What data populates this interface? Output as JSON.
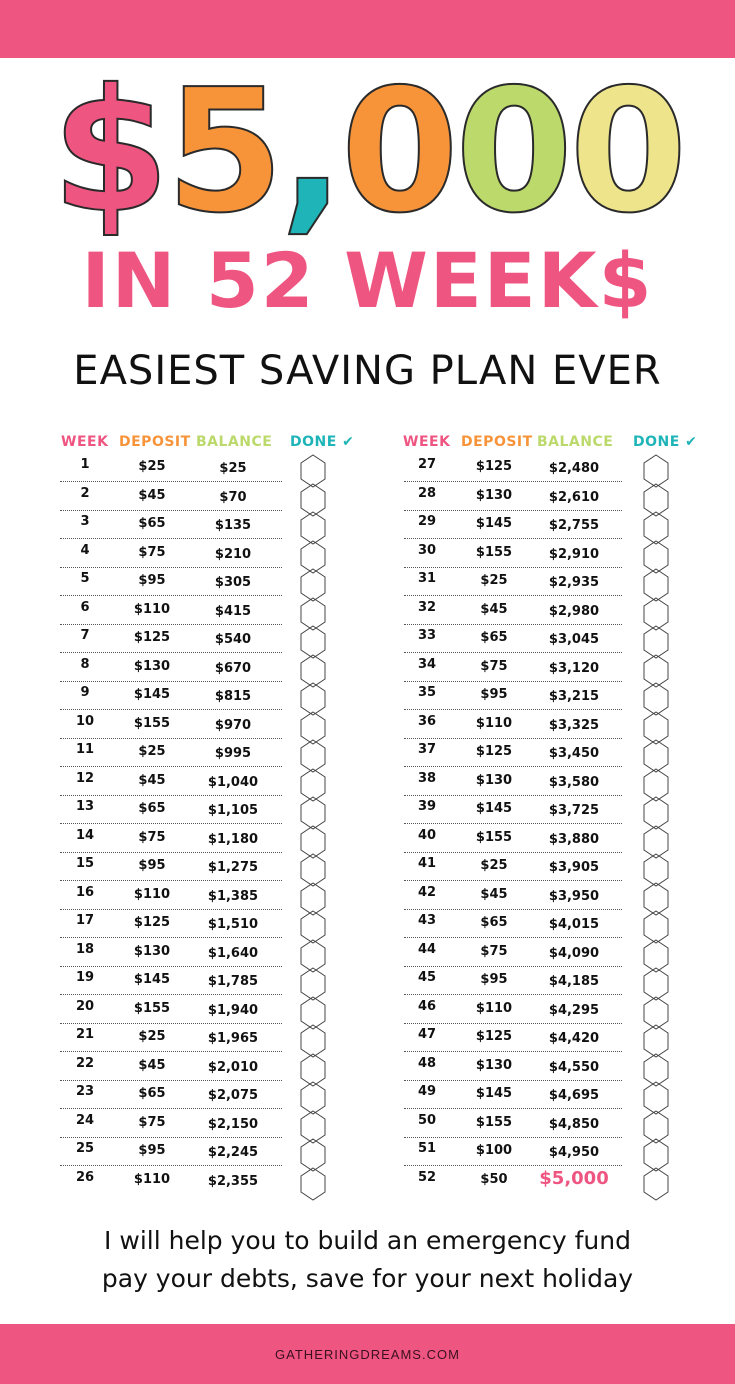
{
  "colors": {
    "pink": "#ef5581",
    "orange": "#f7943a",
    "teal": "#1fb5b8",
    "green": "#bcd96c",
    "yellow": "#eee48c"
  },
  "title": {
    "chars": [
      "$",
      "5",
      ",",
      "0",
      "0",
      "0"
    ],
    "colors": [
      "#ef5581",
      "#f7943a",
      "#1fb5b8",
      "#f7943a",
      "#bcd96c",
      "#eee48c"
    ]
  },
  "subtitle": "IN 52 WEEK$",
  "tagline": "EASIEST SAVING PLAN EVER",
  "headers": {
    "week": "WEEK",
    "deposit": "DEPOSIT",
    "balance": "BALANCE",
    "done": "DONE ✔"
  },
  "left_rows": [
    [
      "1",
      "$25",
      "$25"
    ],
    [
      "2",
      "$45",
      "$70"
    ],
    [
      "3",
      "$65",
      "$135"
    ],
    [
      "4",
      "$75",
      "$210"
    ],
    [
      "5",
      "$95",
      "$305"
    ],
    [
      "6",
      "$110",
      "$415"
    ],
    [
      "7",
      "$125",
      "$540"
    ],
    [
      "8",
      "$130",
      "$670"
    ],
    [
      "9",
      "$145",
      "$815"
    ],
    [
      "10",
      "$155",
      "$970"
    ],
    [
      "11",
      "$25",
      "$995"
    ],
    [
      "12",
      "$45",
      "$1,040"
    ],
    [
      "13",
      "$65",
      "$1,105"
    ],
    [
      "14",
      "$75",
      "$1,180"
    ],
    [
      "15",
      "$95",
      "$1,275"
    ],
    [
      "16",
      "$110",
      "$1,385"
    ],
    [
      "17",
      "$125",
      "$1,510"
    ],
    [
      "18",
      "$130",
      "$1,640"
    ],
    [
      "19",
      "$145",
      "$1,785"
    ],
    [
      "20",
      "$155",
      "$1,940"
    ],
    [
      "21",
      "$25",
      "$1,965"
    ],
    [
      "22",
      "$45",
      "$2,010"
    ],
    [
      "23",
      "$65",
      "$2,075"
    ],
    [
      "24",
      "$75",
      "$2,150"
    ],
    [
      "25",
      "$95",
      "$2,245"
    ],
    [
      "26",
      "$110",
      "$2,355"
    ]
  ],
  "right_rows": [
    [
      "27",
      "$125",
      "$2,480"
    ],
    [
      "28",
      "$130",
      "$2,610"
    ],
    [
      "29",
      "$145",
      "$2,755"
    ],
    [
      "30",
      "$155",
      "$2,910"
    ],
    [
      "31",
      "$25",
      "$2,935"
    ],
    [
      "32",
      "$45",
      "$2,980"
    ],
    [
      "33",
      "$65",
      "$3,045"
    ],
    [
      "34",
      "$75",
      "$3,120"
    ],
    [
      "35",
      "$95",
      "$3,215"
    ],
    [
      "36",
      "$110",
      "$3,325"
    ],
    [
      "37",
      "$125",
      "$3,450"
    ],
    [
      "38",
      "$130",
      "$3,580"
    ],
    [
      "39",
      "$145",
      "$3,725"
    ],
    [
      "40",
      "$155",
      "$3,880"
    ],
    [
      "41",
      "$25",
      "$3,905"
    ],
    [
      "42",
      "$45",
      "$3,950"
    ],
    [
      "43",
      "$65",
      "$4,015"
    ],
    [
      "44",
      "$75",
      "$4,090"
    ],
    [
      "45",
      "$95",
      "$4,185"
    ],
    [
      "46",
      "$110",
      "$4,295"
    ],
    [
      "47",
      "$125",
      "$4,420"
    ],
    [
      "48",
      "$130",
      "$4,550"
    ],
    [
      "49",
      "$145",
      "$4,695"
    ],
    [
      "50",
      "$155",
      "$4,850"
    ],
    [
      "51",
      "$100",
      "$4,950"
    ],
    [
      "52",
      "$50",
      "$5,000"
    ]
  ],
  "message": [
    "I will help you to build an emergency fund",
    "pay your debts, save for your next holiday"
  ],
  "footer": "GATHERINGDREAMS.COM"
}
